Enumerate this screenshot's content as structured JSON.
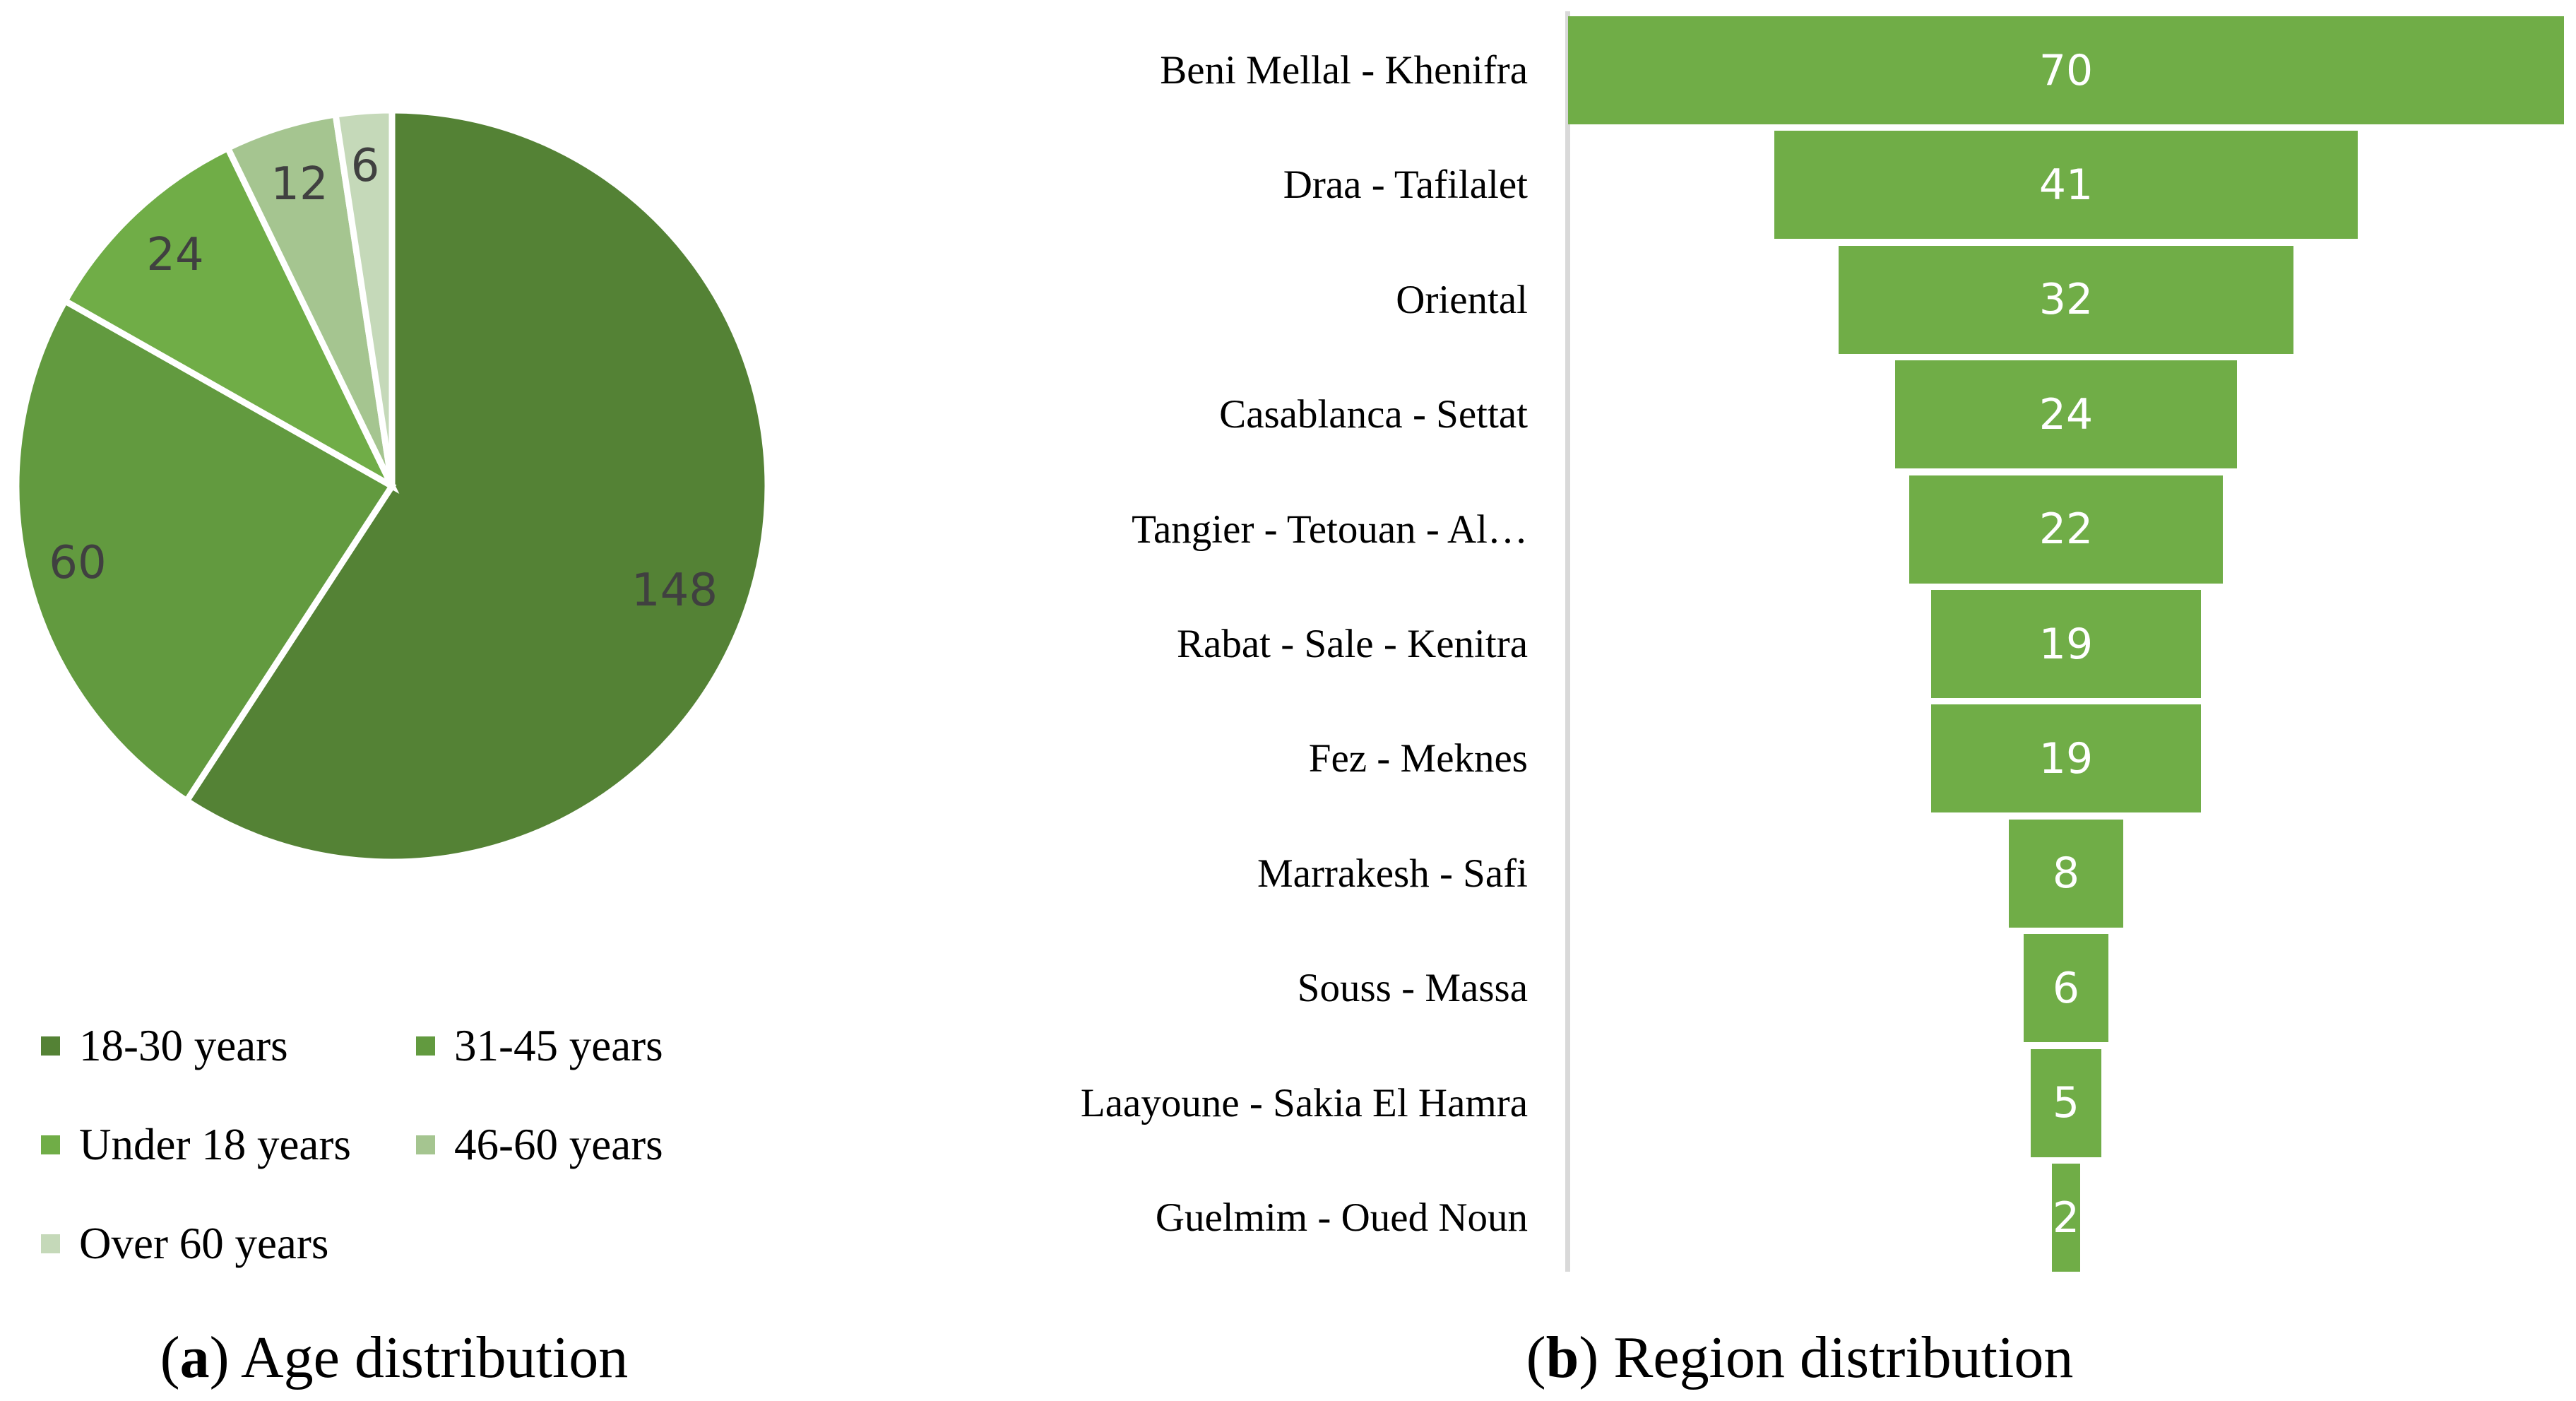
{
  "chart_data": [
    {
      "type": "pie",
      "title": "(a) Age distribution",
      "caption_letter": "a",
      "caption_text": "Age distribution",
      "start_angle_deg": 0,
      "direction": "clockwise",
      "legend_position": "bottom",
      "categories": [
        "18-30 years",
        "31-45 years",
        "Under 18 years",
        "46-60 years",
        "Over 60 years"
      ],
      "values": [
        148,
        60,
        24,
        12,
        6
      ],
      "colors": [
        "#548235",
        "#629A3F",
        "#70AD47",
        "#A5C590",
        "#C5D9B9"
      ],
      "data_labels": [
        "148",
        "60",
        "24",
        "12",
        "6"
      ]
    },
    {
      "type": "bar",
      "subtype": "funnel",
      "title": "(b) Region distribution",
      "caption_letter": "b",
      "caption_text": "Region distribution",
      "categories": [
        "Beni Mellal - Khenifra",
        "Draa - Tafilalet",
        "Oriental",
        "Casablanca - Settat",
        "Tangier - Tetouan - Al…",
        "Rabat - Sale - Kenitra",
        "Fez - Meknes",
        "Marrakesh - Safi",
        "Souss - Massa",
        "Laayoune - Sakia El Hamra",
        "Guelmim - Oued Noun"
      ],
      "values": [
        70,
        41,
        32,
        24,
        22,
        19,
        19,
        8,
        6,
        5,
        2
      ],
      "color": "#70AD47",
      "xlabel": "",
      "ylabel": "",
      "grid": false
    }
  ],
  "pie": {
    "labels": [
      "148",
      "60",
      "24",
      "12",
      "6"
    ],
    "legend": [
      {
        "label": "18-30 years",
        "color": "#548235"
      },
      {
        "label": "31-45 years",
        "color": "#629A3F"
      },
      {
        "label": "Under 18 years",
        "color": "#70AD47"
      },
      {
        "label": "46-60 years",
        "color": "#A5C590"
      },
      {
        "label": "Over 60 years",
        "color": "#C5D9B9"
      }
    ],
    "caption_letter": "a",
    "caption_text": " Age distribution"
  },
  "funnel": {
    "rows": [
      {
        "label": "Beni Mellal - Khenifra",
        "value": "70"
      },
      {
        "label": "Draa - Tafilalet",
        "value": "41"
      },
      {
        "label": "Oriental",
        "value": "32"
      },
      {
        "label": "Casablanca - Settat",
        "value": "24"
      },
      {
        "label": "Tangier - Tetouan - Al…",
        "value": "22"
      },
      {
        "label": "Rabat - Sale - Kenitra",
        "value": "19"
      },
      {
        "label": "Fez - Meknes",
        "value": "19"
      },
      {
        "label": "Marrakesh - Safi",
        "value": "8"
      },
      {
        "label": "Souss - Massa",
        "value": "6"
      },
      {
        "label": "Laayoune - Sakia El Hamra",
        "value": "5"
      },
      {
        "label": "Guelmim - Oued Noun",
        "value": "2"
      }
    ],
    "bar_color": "#70AD47",
    "axis_color": "#D9D9D9",
    "caption_letter": "b",
    "caption_text": " Region distribution"
  }
}
